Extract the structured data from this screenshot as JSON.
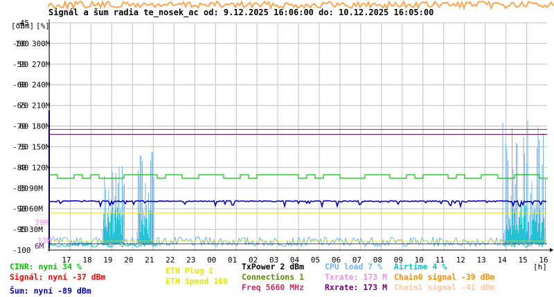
{
  "title": "Signál a šum radia te_nosek_ac od: 9.12.2025 16:06:00 do: 10.12.2025 16:05:00",
  "axis_units": {
    "dbm": "[dBm]",
    "percent": "[%]",
    "hours": "[h]"
  },
  "colors": {
    "grid": "#bfbfbf",
    "axis": "#000000",
    "cinr": "#00c800",
    "signal": "#ff0000",
    "noise": "#0000c8",
    "eth_plug": "#e6e600",
    "eth_speed": "#e6e600",
    "txpower": "#000000",
    "connections": "#5a8c00",
    "freq": "#c83264",
    "cpu": "#6eb4f0",
    "txrate": "#f08ce6",
    "rxrate": "#780078",
    "airtime": "#00c8c8",
    "chain0": "#ff8c00",
    "chain1": "#ffc8a0",
    "top_strip": "#ff9a3c",
    "hline_upper": "#c01040",
    "hline_lower": "#800060"
  },
  "chart_data": {
    "type": "line",
    "x_ticks": [
      "17",
      "18",
      "19",
      "20",
      "21",
      "22",
      "23",
      "00",
      "01",
      "02",
      "03",
      "04",
      "05",
      "06",
      "07",
      "08",
      "09",
      "10",
      "11",
      "12",
      "13",
      "14",
      "15",
      "16"
    ],
    "y_left_dbm": [
      "-45",
      "-50",
      "-55",
      "-60",
      "-65",
      "-70",
      "-75",
      "-80",
      "-85",
      "-90",
      "-95",
      "-100"
    ],
    "y_left_percent": [
      "100",
      "90",
      "80",
      "70",
      "60",
      "50",
      "40",
      "30",
      "20",
      "10"
    ],
    "y_left_rate": [
      "300M",
      "270M",
      "240M",
      "210M",
      "180M",
      "150M",
      "120M",
      "90M",
      "60M",
      "30M"
    ],
    "y_left_pink": [
      "39M",
      "13M"
    ],
    "y_left_purple": [
      "6M"
    ],
    "ylim": [
      -100,
      -45
    ],
    "horizontal_lines_dbm": [
      -70.8,
      -72
    ],
    "series": [
      {
        "name": "CINR",
        "level_percent": 34
      },
      {
        "name": "Signál",
        "level_dbm": -37
      },
      {
        "name": "Šum",
        "level_dbm": -89
      },
      {
        "name": "ETH Speed",
        "level": 100
      },
      {
        "name": "CPU load",
        "level_percent": 7
      },
      {
        "name": "Airtime",
        "level_percent": 4
      }
    ]
  },
  "legend": [
    {
      "text": "CINR: nyní 34 %",
      "color_key": "cinr"
    },
    {
      "text": "Signál: nyní -37 dBm",
      "color_key": "signal"
    },
    {
      "text": "Šum: nyní -89 dBm",
      "color_key": "noise"
    },
    {
      "text": "ETH Plug 1",
      "color_key": "eth_plug"
    },
    {
      "text": "ETH Speed 100",
      "color_key": "eth_speed"
    },
    {
      "text": "TxPower 2 dBm",
      "color_key": "txpower"
    },
    {
      "text": "Connections 1",
      "color_key": "connections"
    },
    {
      "text": "Freq 5660 MHz",
      "color_key": "freq"
    },
    {
      "text": "CPU load 7 %",
      "color_key": "cpu"
    },
    {
      "text": "Txrate: 173 M",
      "color_key": "txrate"
    },
    {
      "text": "Rxrate: 173 M",
      "color_key": "rxrate"
    },
    {
      "text": "Airtime 4 %",
      "color_key": "airtime"
    },
    {
      "text": "Chain0 signal -39 dBm",
      "color_key": "chain0"
    },
    {
      "text": "Chain1 signal -41 dBm",
      "color_key": "chain1"
    }
  ]
}
